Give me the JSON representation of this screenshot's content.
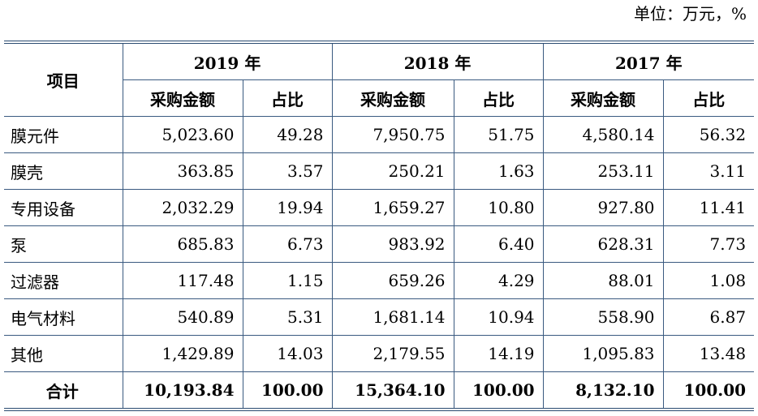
{
  "unit_label": "单位：万元，%",
  "table": {
    "item_header": "项目",
    "years": [
      {
        "label": "2019 年"
      },
      {
        "label": "2018 年"
      },
      {
        "label": "2017 年"
      }
    ],
    "sub_headers": {
      "amount": "采购金额",
      "ratio": "占比"
    },
    "rows": [
      {
        "name": "膜元件",
        "y2019_amount": "5,023.60",
        "y2019_ratio": "49.28",
        "y2018_amount": "7,950.75",
        "y2018_ratio": "51.75",
        "y2017_amount": "4,580.14",
        "y2017_ratio": "56.32"
      },
      {
        "name": "膜壳",
        "y2019_amount": "363.85",
        "y2019_ratio": "3.57",
        "y2018_amount": "250.21",
        "y2018_ratio": "1.63",
        "y2017_amount": "253.11",
        "y2017_ratio": "3.11"
      },
      {
        "name": "专用设备",
        "y2019_amount": "2,032.29",
        "y2019_ratio": "19.94",
        "y2018_amount": "1,659.27",
        "y2018_ratio": "10.80",
        "y2017_amount": "927.80",
        "y2017_ratio": "11.41"
      },
      {
        "name": "泵",
        "y2019_amount": "685.83",
        "y2019_ratio": "6.73",
        "y2018_amount": "983.92",
        "y2018_ratio": "6.40",
        "y2017_amount": "628.31",
        "y2017_ratio": "7.73"
      },
      {
        "name": "过滤器",
        "y2019_amount": "117.48",
        "y2019_ratio": "1.15",
        "y2018_amount": "659.26",
        "y2018_ratio": "4.29",
        "y2017_amount": "88.01",
        "y2017_ratio": "1.08"
      },
      {
        "name": "电气材料",
        "y2019_amount": "540.89",
        "y2019_ratio": "5.31",
        "y2018_amount": "1,681.14",
        "y2018_ratio": "10.94",
        "y2017_amount": "558.90",
        "y2017_ratio": "6.87"
      },
      {
        "name": "其他",
        "y2019_amount": "1,429.89",
        "y2019_ratio": "14.03",
        "y2018_amount": "2,179.55",
        "y2018_ratio": "14.19",
        "y2017_amount": "1,095.83",
        "y2017_ratio": "13.48"
      }
    ],
    "total": {
      "name": "合计",
      "y2019_amount": "10,193.84",
      "y2019_ratio": "100.00",
      "y2018_amount": "15,364.10",
      "y2018_ratio": "100.00",
      "y2017_amount": "8,132.10",
      "y2017_ratio": "100.00"
    }
  }
}
